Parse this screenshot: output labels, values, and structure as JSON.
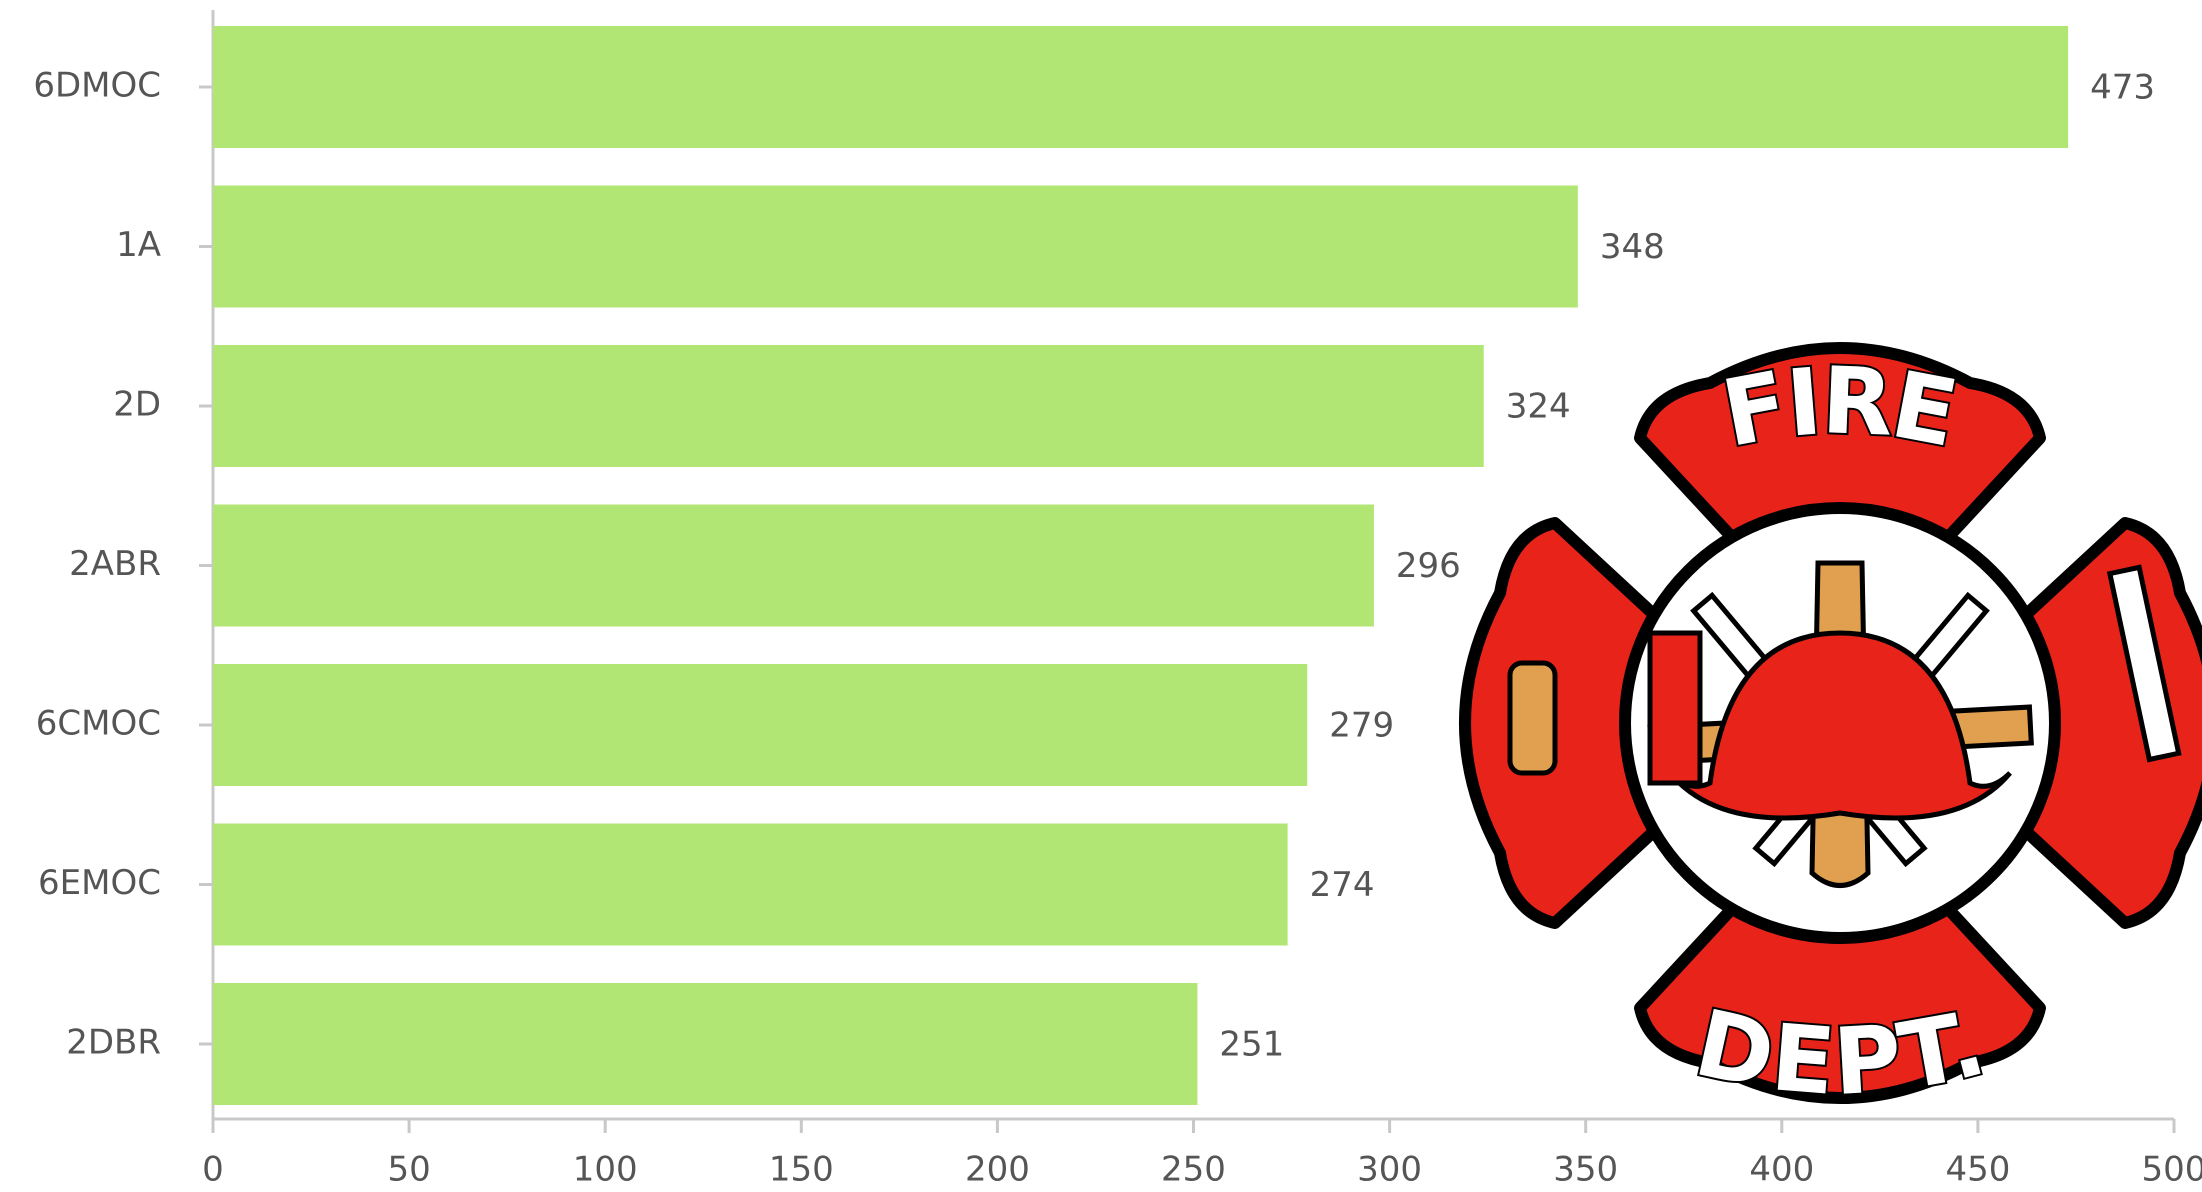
{
  "chart_data": {
    "type": "barh",
    "categories": [
      "6DMOC",
      "1A",
      "2D",
      "2ABR",
      "6CMOC",
      "6EMOC",
      "2DBR"
    ],
    "values": [
      473,
      348,
      324,
      296,
      279,
      274,
      251
    ],
    "color": "#b1e674",
    "xlim": [
      0,
      500
    ],
    "xticks": [
      0,
      50,
      100,
      150,
      200,
      250,
      300,
      350,
      400,
      450,
      500
    ],
    "grid": false
  },
  "logo": {
    "top": "FIRE",
    "bottom": "DEPT."
  }
}
